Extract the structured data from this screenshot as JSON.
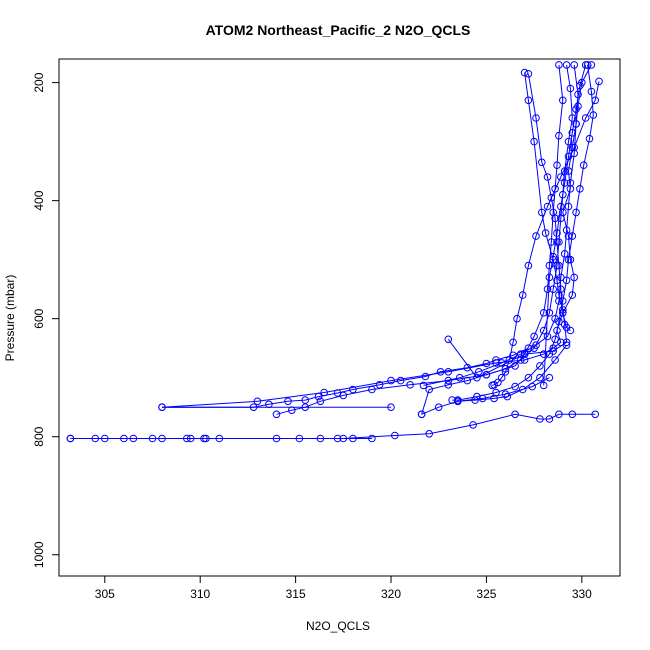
{
  "chart_data": {
    "type": "line",
    "title": "ATOM2 Northeast_Pacific_2 N2O_QCLS",
    "xlabel": "N2O_QCLS",
    "ylabel": "Pressure (mbar)",
    "xlim": [
      302.6,
      332.0
    ],
    "ylim": [
      1036,
      160
    ],
    "y_inverted": true,
    "x_ticks": [
      305,
      310,
      315,
      320,
      325,
      330
    ],
    "y_ticks": [
      200,
      400,
      600,
      800,
      1000
    ],
    "grid": false,
    "marker": "open-circle",
    "color": "#0000ff",
    "series": [
      {
        "x": [
          330.5,
          330.0,
          329.8,
          329.7,
          329.5,
          329.3,
          329.4,
          329.0,
          329.3,
          329.4,
          329.6,
          329.5,
          329.0,
          328.7,
          328.9,
          328.5,
          328.0,
          327.0,
          325.5,
          323.0,
          320.0,
          316.5,
          313.0,
          308.0,
          320.0
        ],
        "y": [
          170,
          200,
          240,
          270,
          310,
          350,
          380,
          420,
          460,
          500,
          530,
          560,
          590,
          620,
          640,
          650,
          660,
          670,
          675,
          690,
          705,
          725,
          740,
          750,
          750
        ]
      },
      {
        "x": [
          328.8,
          329.0,
          328.8,
          328.7,
          328.6,
          328.5,
          328.4,
          328.3,
          328.2,
          328.0,
          327.5,
          327.0,
          326.5,
          325.0,
          323.0,
          321.0,
          319.0,
          317.5,
          316.3,
          315.5,
          314.8,
          314.0
        ],
        "y": [
          170,
          230,
          290,
          340,
          380,
          420,
          470,
          510,
          550,
          590,
          630,
          660,
          680,
          695,
          705,
          712,
          720,
          730,
          740,
          750,
          755,
          762
        ]
      },
      {
        "x": [
          329.2,
          329.4,
          329.5,
          329.3,
          329.1,
          329.0,
          328.9,
          328.8,
          328.7,
          328.5,
          328.3,
          328.0,
          327.5,
          326.8,
          326.0,
          325.0,
          324.0,
          323.0,
          322.0,
          321.6
        ],
        "y": [
          170,
          210,
          260,
          300,
          350,
          390,
          430,
          470,
          510,
          550,
          590,
          620,
          650,
          670,
          685,
          695,
          705,
          712,
          720,
          762
        ]
      },
      {
        "x": [
          329.6,
          329.8,
          329.7,
          329.6,
          329.4,
          329.3,
          329.2,
          329.1,
          328.9,
          328.8,
          328.6,
          328.2,
          327.6,
          326.8,
          325.8,
          324.6,
          323.6,
          321.7
        ],
        "y": [
          170,
          220,
          270,
          320,
          370,
          410,
          450,
          490,
          530,
          570,
          600,
          630,
          645,
          660,
          675,
          690,
          700,
          713
        ]
      },
      {
        "x": [
          327.2,
          327.6,
          327.9,
          328.2,
          328.4,
          328.6,
          328.7,
          328.8,
          328.9,
          329.0,
          329.2,
          329.4
        ],
        "y": [
          185,
          260,
          335,
          360,
          395,
          430,
          470,
          510,
          550,
          590,
          615,
          620
        ]
      },
      {
        "x": [
          327.0,
          327.2,
          327.5,
          327.9,
          328.1,
          328.5,
          328.7,
          328.8,
          329.0,
          329.1,
          329.2,
          328.5,
          327.0,
          324.5,
          323.0
        ],
        "y": [
          183,
          230,
          300,
          420,
          455,
          500,
          535,
          560,
          585,
          610,
          640,
          655,
          660,
          700,
          635
        ]
      },
      {
        "x": [
          330.3,
          330.5,
          330.6,
          330.4,
          330.1,
          329.9,
          329.7,
          329.5,
          329.3,
          329.2,
          329.0,
          328.8,
          328.6,
          328.3,
          327.8,
          327.2,
          326.5,
          325.5,
          324.5,
          323.5,
          323.2
        ],
        "y": [
          170,
          215,
          255,
          295,
          340,
          380,
          420,
          460,
          500,
          535,
          570,
          605,
          635,
          660,
          680,
          700,
          715,
          725,
          732,
          738,
          738
        ]
      },
      {
        "x": [
          330.9,
          330.7,
          330.2,
          329.6,
          328.9,
          328.2,
          327.6,
          327.2,
          326.9,
          326.6,
          326.4,
          326.2,
          326.0,
          325.8,
          325.6,
          325.4,
          325.3
        ],
        "y": [
          198,
          230,
          260,
          310,
          360,
          410,
          460,
          510,
          560,
          600,
          640,
          670,
          690,
          700,
          708,
          712,
          713
        ]
      },
      {
        "x": [
          330.2,
          329.9,
          329.7,
          329.5,
          329.3,
          329.1,
          328.9,
          328.7,
          328.5,
          328.3,
          328.0
        ],
        "y": [
          170,
          205,
          245,
          285,
          325,
          370,
          410,
          455,
          495,
          530,
          713
        ]
      },
      {
        "x": [
          303.2,
          304.5,
          305.0,
          306.0,
          306.5,
          307.5,
          308.0,
          309.5,
          310.2,
          311.0,
          314.0,
          315.2,
          316.3,
          317.2,
          318.0,
          319.0
        ],
        "y": [
          803,
          803,
          803,
          803,
          803,
          803,
          803,
          803,
          803,
          803,
          803,
          803,
          803,
          803,
          803,
          803
        ]
      },
      {
        "x": [
          303.2,
          309.3,
          310.3,
          317.5,
          320.2,
          322.0,
          324.3,
          326.5,
          327.8,
          328.3,
          328.8,
          329.5,
          330.7
        ],
        "y": [
          803,
          803,
          803,
          803,
          798,
          795,
          780,
          762,
          770,
          770,
          762,
          762,
          762
        ]
      },
      {
        "x": [
          308.0,
          312.8,
          313.6,
          314.6,
          315.5,
          316.2,
          317.2,
          318.0,
          319.4,
          320.5,
          321.8,
          322.6,
          324.0,
          325.0,
          325.5,
          326.4,
          327.2
        ],
        "y": [
          750,
          750,
          745,
          740,
          738,
          732,
          726,
          720,
          712,
          705,
          698,
          690,
          683,
          676,
          670,
          662,
          650
        ]
      },
      {
        "x": [
          323.5,
          324.4,
          325.4,
          326.1,
          326.9,
          327.8,
          328.6,
          329.2
        ],
        "y": [
          740,
          738,
          735,
          732,
          720,
          700,
          670,
          645
        ]
      },
      {
        "x": [
          321.6,
          322.5,
          323.5,
          324.8,
          326.0,
          327.4,
          328.3
        ],
        "y": [
          762,
          750,
          740,
          735,
          728,
          715,
          700
        ]
      }
    ]
  }
}
